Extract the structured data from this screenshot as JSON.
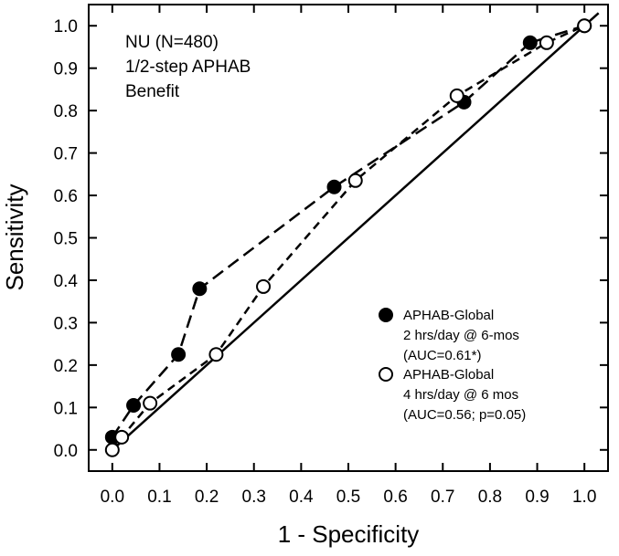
{
  "chart_data": {
    "type": "line",
    "annotation": [
      "NU (N=480)",
      "1/2-step APHAB",
      "Benefit"
    ],
    "xlabel": "1 - Specificity",
    "ylabel": "Sensitivity",
    "xlim": [
      -0.05,
      1.05
    ],
    "ylim": [
      -0.05,
      1.05
    ],
    "xticks": [
      "0.0",
      "0.1",
      "0.2",
      "0.3",
      "0.4",
      "0.5",
      "0.6",
      "0.7",
      "0.8",
      "0.9",
      "1.0"
    ],
    "yticks": [
      "0.0",
      "0.1",
      "0.2",
      "0.3",
      "0.4",
      "0.5",
      "0.6",
      "0.7",
      "0.8",
      "0.9",
      "1.0"
    ],
    "grid": false,
    "legend_position": "bottom-right",
    "reference_line": {
      "x": [
        0,
        1.03
      ],
      "y": [
        0,
        1.03
      ]
    },
    "series": [
      {
        "legend": [
          "APHAB-Global",
          "2 hrs/day @ 6-mos",
          "(AUC=0.61*)"
        ],
        "marker": "filled-circle",
        "color": "#000000",
        "x": [
          0.0,
          0.045,
          0.14,
          0.185,
          0.47,
          0.745,
          0.885,
          1.0
        ],
        "y": [
          0.03,
          0.105,
          0.225,
          0.38,
          0.62,
          0.82,
          0.96,
          1.0
        ]
      },
      {
        "legend": [
          "APHAB-Global",
          "4 hrs/day @ 6 mos",
          "(AUC=0.56; p=0.05)"
        ],
        "marker": "open-circle",
        "color": "#000000",
        "x": [
          0.0,
          0.02,
          0.08,
          0.22,
          0.32,
          0.515,
          0.73,
          0.92,
          1.0
        ],
        "y": [
          0.0,
          0.03,
          0.11,
          0.225,
          0.385,
          0.635,
          0.835,
          0.96,
          1.0
        ]
      }
    ]
  }
}
